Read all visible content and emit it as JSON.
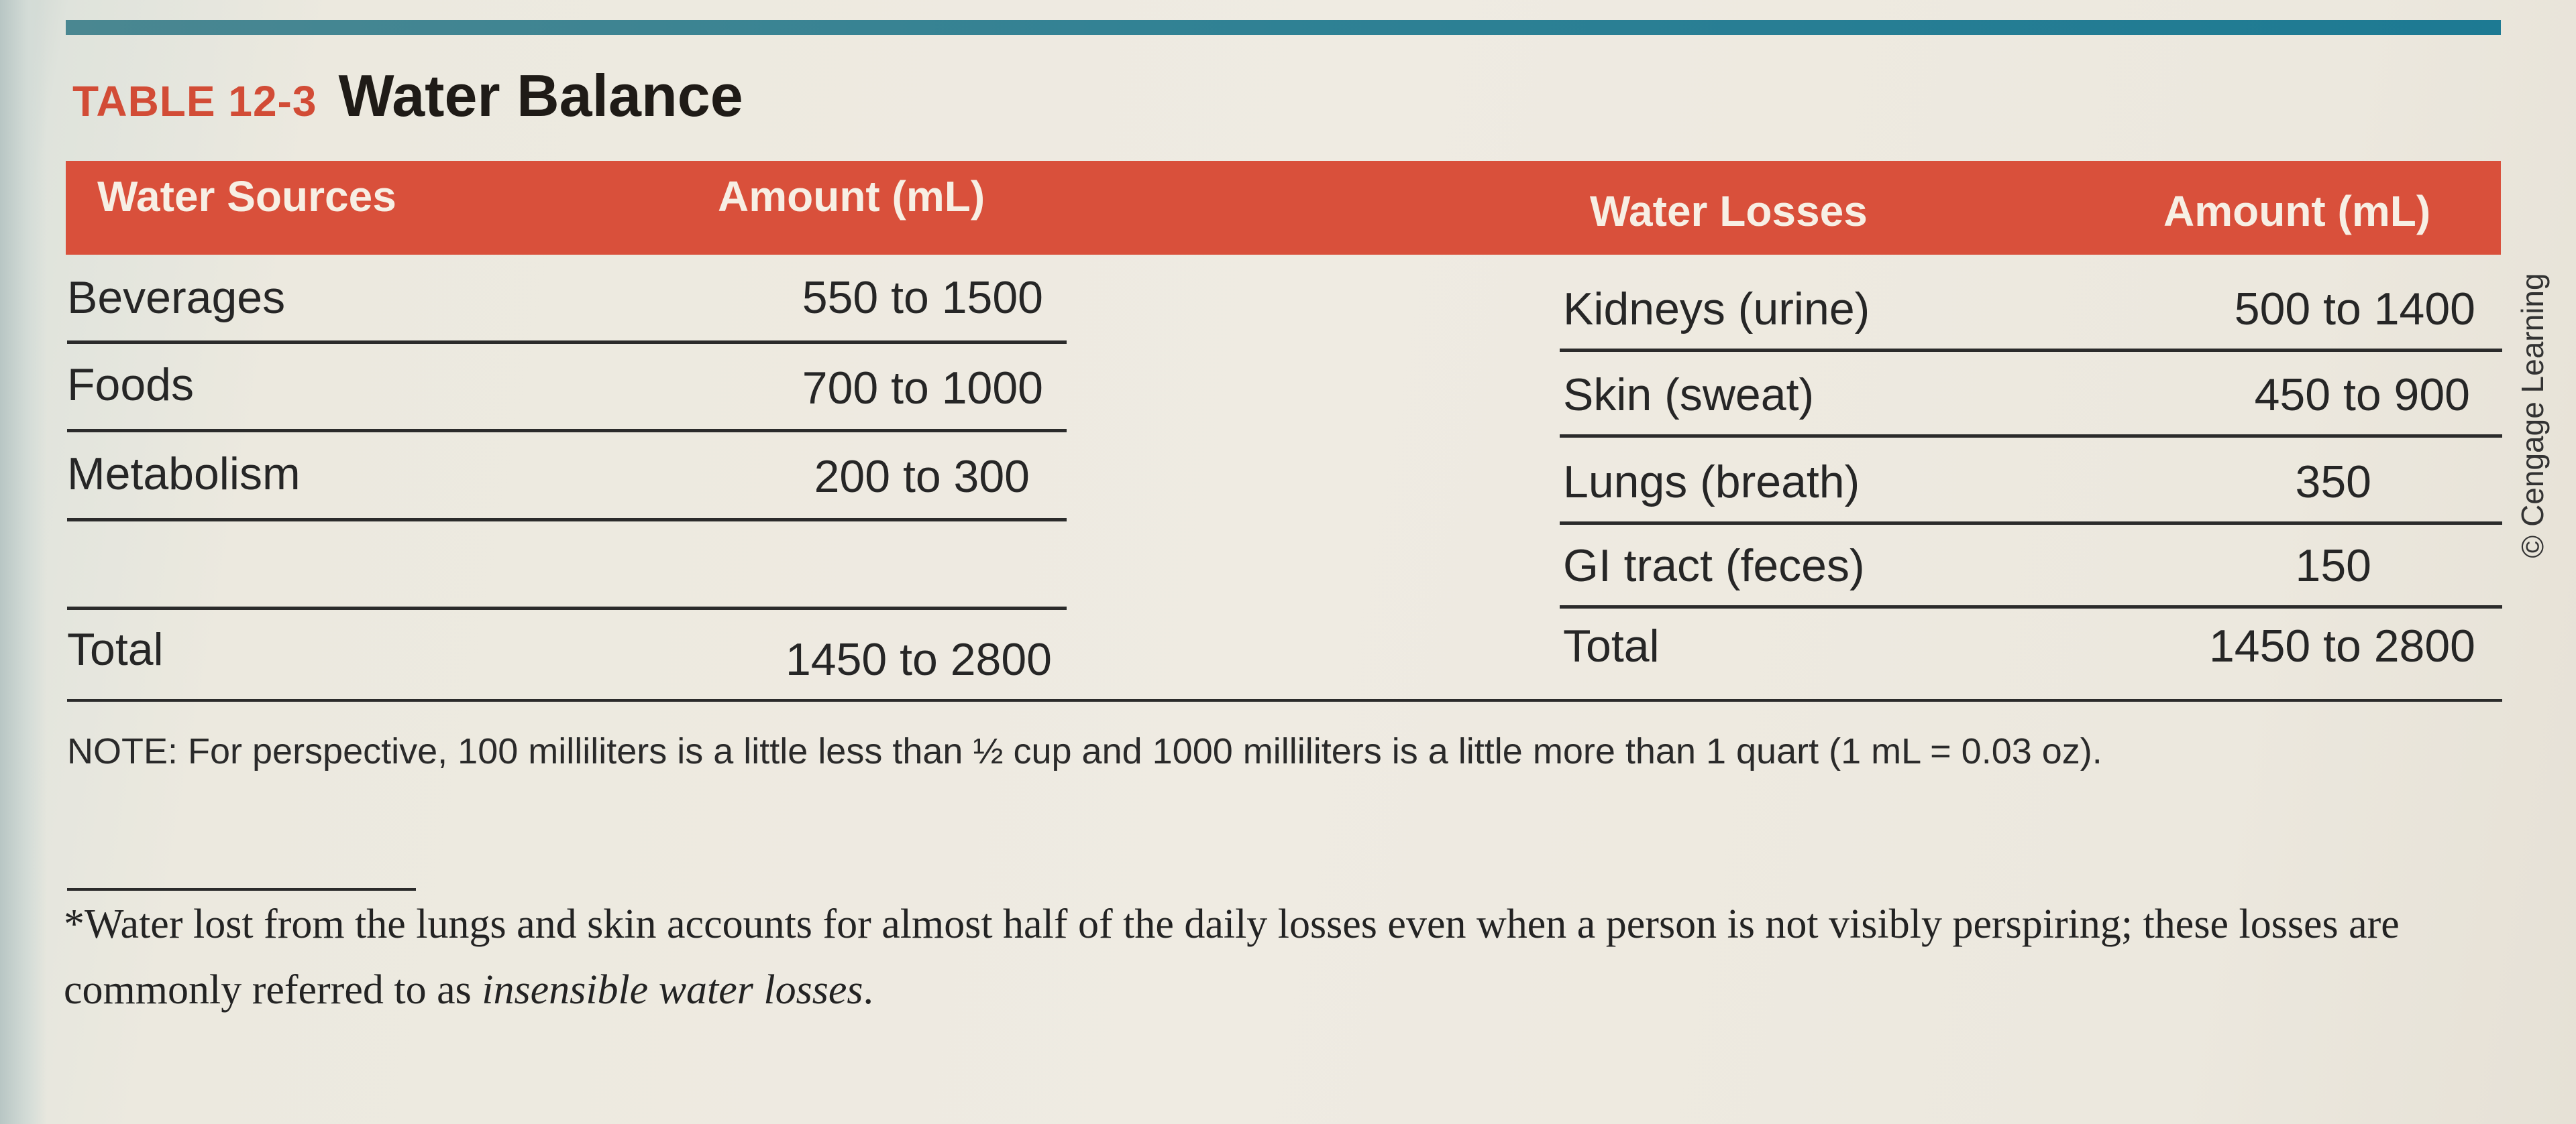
{
  "title": {
    "label": "TABLE 12-3",
    "text": "Water Balance"
  },
  "headers": {
    "sources": "Water Sources",
    "sources_amount": "Amount (mL)",
    "losses": "Water Losses",
    "losses_amount": "Amount (mL)"
  },
  "sources": [
    {
      "name": "Beverages",
      "amount": "550 to 1500"
    },
    {
      "name": "Foods",
      "amount": "700 to 1000"
    },
    {
      "name": "Metabolism",
      "amount": "200 to 300"
    }
  ],
  "sources_total": {
    "name": "Total",
    "amount": "1450 to 2800"
  },
  "losses": [
    {
      "name": "Kidneys (urine)",
      "amount": "500 to 1400"
    },
    {
      "name": "Skin (sweat)",
      "amount": "450 to 900"
    },
    {
      "name": "Lungs (breath)",
      "amount": "350"
    },
    {
      "name": "GI tract (feces)",
      "amount": "150"
    }
  ],
  "losses_total": {
    "name": "Total",
    "amount": "1450 to 2800"
  },
  "credit": "© Cengage Learning",
  "note": "NOTE: For perspective, 100 milliliters is a little less than ½ cup and 1000 milliliters is a little more than 1 quart (1 mL = 0.03 oz).",
  "footnote": {
    "text": "*Water lost from the lungs and skin accounts for almost half of the daily losses even when a person is not visibly perspiring; these losses are commonly referred to as ",
    "emphasis": "insensible water losses",
    "end": "."
  },
  "colors": {
    "accent_red": "#d9503b",
    "rule_teal": "#2f8194",
    "title_red": "#d24c36"
  }
}
